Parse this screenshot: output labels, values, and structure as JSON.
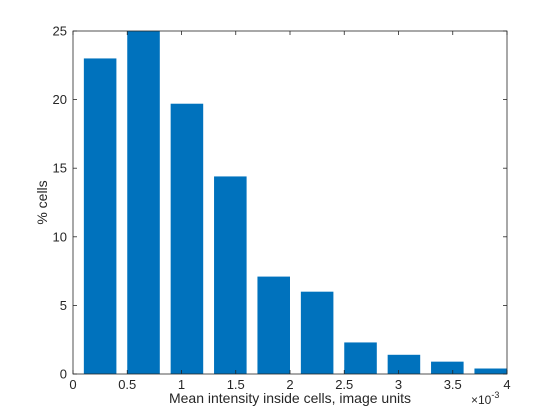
{
  "chart_data": {
    "type": "bar",
    "title": "",
    "xlabel": "Mean intensity inside cells, image units",
    "ylabel": "% cells",
    "x_multiplier_label": "×10",
    "x_multiplier_exponent": "-3",
    "xlim": [
      0,
      4
    ],
    "ylim": [
      0,
      25
    ],
    "x_ticks": [
      0,
      0.5,
      1,
      1.5,
      2,
      2.5,
      3,
      3.5,
      4
    ],
    "x_tick_labels": [
      "0",
      "0.5",
      "1",
      "1.5",
      "2",
      "2.5",
      "3",
      "3.5",
      "4"
    ],
    "y_ticks": [
      0,
      5,
      10,
      15,
      20,
      25
    ],
    "y_tick_labels": [
      "0",
      "5",
      "10",
      "15",
      "20",
      "25"
    ],
    "bar_width": 0.3,
    "x": [
      0.25,
      0.65,
      1.05,
      1.45,
      1.85,
      2.25,
      2.65,
      3.05,
      3.45,
      3.85
    ],
    "values": [
      23.0,
      25.0,
      19.7,
      14.4,
      7.1,
      6.0,
      2.3,
      1.4,
      0.9,
      0.4
    ],
    "grid": false,
    "bar_color": "#0072BD",
    "axis_color": "#262626"
  }
}
